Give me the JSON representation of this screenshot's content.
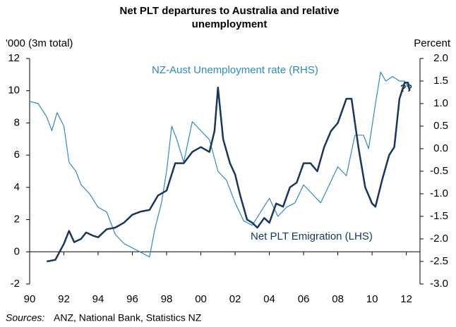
{
  "chart_data": {
    "type": "line",
    "title": "Net PLT departures to Australia and  relative unemployment",
    "ylabel": "'000 (3m total)",
    "y2label": "Percent",
    "source_label": "Sources:",
    "source": "ANZ, National Bank, Statistics NZ",
    "annotations": [
      "NZ-Aust Unemployment rate (RHS)",
      "Net PLT Emigration (LHS)",
      "??"
    ],
    "xlim": [
      1990,
      2012.8
    ],
    "xticks": [
      {
        "value": 1990,
        "label": "90"
      },
      {
        "value": 1992,
        "label": "92"
      },
      {
        "value": 1994,
        "label": "94"
      },
      {
        "value": 1996,
        "label": "96"
      },
      {
        "value": 1998,
        "label": "98"
      },
      {
        "value": 2000,
        "label": "00"
      },
      {
        "value": 2002,
        "label": "02"
      },
      {
        "value": 2004,
        "label": "04"
      },
      {
        "value": 2006,
        "label": "06"
      },
      {
        "value": 2008,
        "label": "08"
      },
      {
        "value": 2010,
        "label": "10"
      },
      {
        "value": 2012,
        "label": "12"
      }
    ],
    "ylim": [
      -2,
      12
    ],
    "yticks": [
      -2,
      0,
      2,
      4,
      6,
      8,
      10,
      12
    ],
    "y2lim": [
      -3,
      2
    ],
    "y2ticks": [
      {
        "value": -3,
        "label": "-3.0"
      },
      {
        "value": -2.5,
        "label": "-2.5"
      },
      {
        "value": -2,
        "label": "-2.0"
      },
      {
        "value": -1.5,
        "label": "-1.5"
      },
      {
        "value": -1,
        "label": "-1.0"
      },
      {
        "value": -0.5,
        "label": "-0.5"
      },
      {
        "value": 0,
        "label": "0.0"
      },
      {
        "value": 0.5,
        "label": "0.5"
      },
      {
        "value": 1,
        "label": "1.0"
      },
      {
        "value": 1.5,
        "label": "1.5"
      },
      {
        "value": 2,
        "label": "2.0"
      }
    ],
    "series": [
      {
        "name": "Net PLT Emigration (LHS)",
        "color": "#17375e",
        "width": 2.5,
        "x": [
          1991.0,
          1991.5,
          1992.0,
          1992.3,
          1992.6,
          1993.0,
          1993.3,
          1993.7,
          1994.0,
          1994.5,
          1995.0,
          1995.5,
          1996.0,
          1996.5,
          1997.0,
          1997.5,
          1998.0,
          1998.5,
          1999.0,
          1999.5,
          2000.0,
          2000.5,
          2000.8,
          2001.0,
          2001.3,
          2001.7,
          2002.0,
          2002.3,
          2002.7,
          2003.0,
          2003.3,
          2003.7,
          2004.0,
          2004.4,
          2004.8,
          2005.2,
          2005.6,
          2006.0,
          2006.4,
          2006.8,
          2007.2,
          2007.6,
          2008.0,
          2008.5,
          2008.8,
          2009.2,
          2009.6,
          2010.0,
          2010.2,
          2010.6,
          2011.0,
          2011.3,
          2011.6,
          2011.9,
          2012.1,
          2012.2
        ],
        "values": [
          -0.6,
          -0.5,
          0.5,
          1.3,
          0.6,
          0.8,
          1.2,
          1.0,
          0.9,
          1.4,
          1.5,
          1.8,
          2.3,
          2.5,
          2.6,
          3.5,
          3.8,
          5.5,
          5.5,
          6.2,
          6.5,
          6.2,
          7.5,
          10.2,
          7.0,
          5.5,
          4.8,
          3.5,
          2.0,
          1.8,
          1.5,
          2.1,
          1.8,
          3.0,
          2.8,
          4.0,
          4.3,
          5.5,
          5.5,
          5.0,
          6.5,
          7.5,
          8.0,
          9.5,
          9.5,
          6.5,
          4.0,
          3.0,
          2.8,
          4.5,
          6.0,
          6.5,
          9.5,
          10.5,
          10.5,
          10.0
        ]
      },
      {
        "name": "NZ-Aust Unemployment rate (RHS)",
        "color": "#2e8bc0",
        "width": 1.2,
        "axis": "y2",
        "x": [
          1990.0,
          1990.5,
          1991.0,
          1991.3,
          1991.6,
          1992.0,
          1992.3,
          1992.7,
          1993.0,
          1993.5,
          1994.0,
          1994.5,
          1995.0,
          1995.5,
          1996.0,
          1996.5,
          1997.0,
          1997.3,
          1997.7,
          1998.0,
          1998.3,
          1998.6,
          1999.0,
          1999.5,
          2000.0,
          2000.5,
          2001.0,
          2001.5,
          2002.0,
          2002.5,
          2003.0,
          2003.5,
          2004.0,
          2004.5,
          2005.0,
          2005.5,
          2006.0,
          2006.5,
          2007.0,
          2007.5,
          2008.0,
          2008.5,
          2009.0,
          2009.5,
          2009.8,
          2010.2,
          2010.5,
          2010.8,
          2011.2,
          2011.6,
          2011.9,
          2012.2
        ],
        "values": [
          1.05,
          1.0,
          0.7,
          0.4,
          0.8,
          0.5,
          -0.3,
          -0.5,
          -0.8,
          -1.0,
          -1.3,
          -1.4,
          -1.9,
          -2.1,
          -2.2,
          -2.3,
          -2.4,
          -1.8,
          -1.2,
          -0.5,
          0.5,
          0.2,
          -0.3,
          0.6,
          0.4,
          0.2,
          -0.5,
          -0.7,
          -1.2,
          -1.6,
          -1.7,
          -1.4,
          -1.1,
          -1.5,
          -1.3,
          -1.2,
          -0.8,
          -1.0,
          -1.2,
          -0.8,
          -0.4,
          -0.6,
          0.3,
          0.3,
          0.0,
          1.0,
          1.7,
          1.5,
          1.6,
          1.5,
          1.5,
          1.3
        ]
      }
    ]
  }
}
